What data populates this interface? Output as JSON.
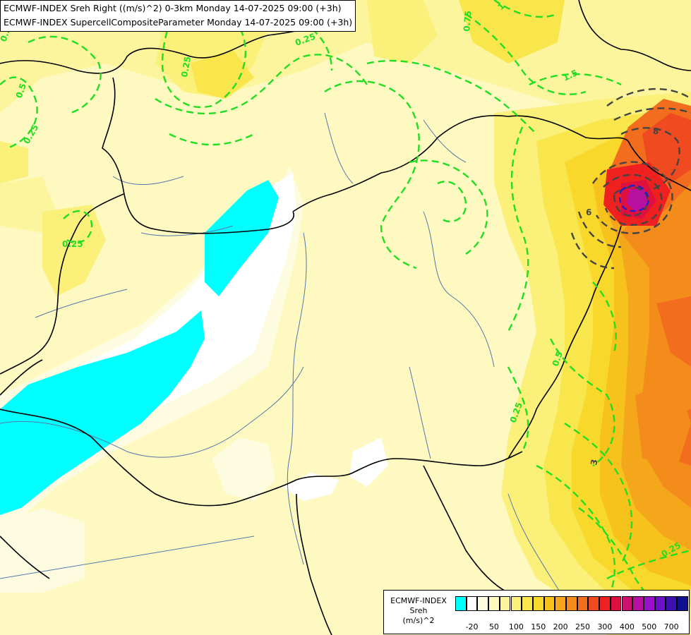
{
  "titles": {
    "line1": "ECMWF-INDEX Sreh Right ((m/s)^2) 0-3km Monday 14-07-2025 09:00 (+3h)",
    "line2": "ECMWF-INDEX SupercellCompositeParameter Monday 14-07-2025 09:00 (+3h)"
  },
  "legend": {
    "source": "ECMWF-INDEX",
    "param": "Sreh",
    "unit": "(m/s)^2",
    "colors": [
      "#00ffff",
      "#ffffff",
      "#fefce0",
      "#fdf9c0",
      "#fcf59e",
      "#fbf07a",
      "#f9e54c",
      "#f8d82a",
      "#f7c21c",
      "#f5a71c",
      "#f48c1c",
      "#f26e1e",
      "#f04a20",
      "#ee2020",
      "#dd1040",
      "#cc1070",
      "#b810a0",
      "#9810cc",
      "#6c10cc",
      "#3c10b0",
      "#101090"
    ],
    "ticks": [
      "-20",
      "50",
      "100",
      "150",
      "200",
      "250",
      "300",
      "400",
      "500",
      "700"
    ]
  },
  "contour_labels": [
    "0.25",
    "0.5",
    "0.75",
    "1",
    "1.5",
    "3",
    "6",
    "8"
  ],
  "colors": {
    "border": "#000000",
    "river": "#5577aa",
    "contour_scp": "#22dd22",
    "contour_scp_high": "#444444"
  }
}
